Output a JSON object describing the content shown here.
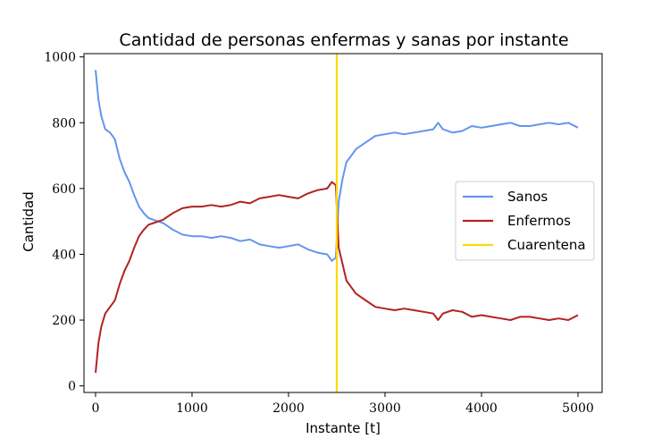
{
  "chart_data": {
    "type": "line",
    "title": "Cantidad de personas enfermas y sanas por instante",
    "xlabel": "Instante [t]",
    "ylabel": "Cantidad",
    "xlim": [
      -120,
      5250
    ],
    "ylim": [
      -20,
      1010
    ],
    "xticks": [
      0,
      1000,
      2000,
      3000,
      4000,
      5000
    ],
    "yticks": [
      0,
      200,
      400,
      600,
      800,
      1000
    ],
    "grid": false,
    "legend_position": "center-right",
    "series": [
      {
        "name": "Sanos",
        "color": "#6495ED",
        "x": [
          0,
          30,
          60,
          100,
          150,
          200,
          250,
          300,
          350,
          400,
          450,
          500,
          550,
          600,
          650,
          700,
          750,
          800,
          900,
          1000,
          1100,
          1200,
          1300,
          1400,
          1500,
          1600,
          1700,
          1800,
          1900,
          2000,
          2100,
          2200,
          2300,
          2400,
          2450,
          2490,
          2520,
          2560,
          2600,
          2650,
          2700,
          2800,
          2900,
          3000,
          3100,
          3200,
          3300,
          3400,
          3500,
          3550,
          3600,
          3700,
          3800,
          3900,
          4000,
          4100,
          4200,
          4300,
          4400,
          4500,
          4600,
          4700,
          4800,
          4900,
          5000
        ],
        "y": [
          960,
          870,
          820,
          780,
          770,
          750,
          690,
          650,
          620,
          580,
          545,
          525,
          510,
          505,
          500,
          495,
          485,
          475,
          460,
          455,
          455,
          450,
          455,
          450,
          440,
          445,
          430,
          425,
          420,
          425,
          430,
          415,
          405,
          400,
          380,
          390,
          560,
          630,
          680,
          700,
          720,
          740,
          760,
          765,
          770,
          765,
          770,
          775,
          780,
          800,
          780,
          770,
          775,
          790,
          785,
          790,
          795,
          800,
          790,
          790,
          795,
          800,
          795,
          800,
          785
        ]
      },
      {
        "name": "Enfermos",
        "color": "#B22222",
        "x": [
          0,
          30,
          60,
          100,
          150,
          200,
          250,
          300,
          350,
          400,
          450,
          500,
          550,
          600,
          650,
          700,
          750,
          800,
          900,
          1000,
          1100,
          1200,
          1300,
          1400,
          1500,
          1600,
          1700,
          1800,
          1900,
          2000,
          2100,
          2200,
          2300,
          2400,
          2450,
          2490,
          2520,
          2560,
          2600,
          2650,
          2700,
          2800,
          2900,
          3000,
          3100,
          3200,
          3300,
          3400,
          3500,
          3550,
          3600,
          3700,
          3800,
          3900,
          4000,
          4100,
          4200,
          4300,
          4400,
          4500,
          4600,
          4700,
          4800,
          4900,
          5000
        ],
        "y": [
          40,
          130,
          180,
          220,
          240,
          260,
          310,
          350,
          380,
          420,
          455,
          475,
          490,
          495,
          500,
          505,
          515,
          525,
          540,
          545,
          545,
          550,
          545,
          550,
          560,
          555,
          570,
          575,
          580,
          575,
          570,
          585,
          595,
          600,
          620,
          610,
          420,
          370,
          320,
          300,
          280,
          260,
          240,
          235,
          230,
          235,
          230,
          225,
          220,
          200,
          220,
          230,
          225,
          210,
          215,
          210,
          205,
          200,
          210,
          210,
          205,
          200,
          205,
          200,
          215
        ]
      }
    ],
    "vlines": [
      {
        "name": "Cuarentena",
        "color": "#FFD700",
        "x": 2500
      }
    ]
  }
}
